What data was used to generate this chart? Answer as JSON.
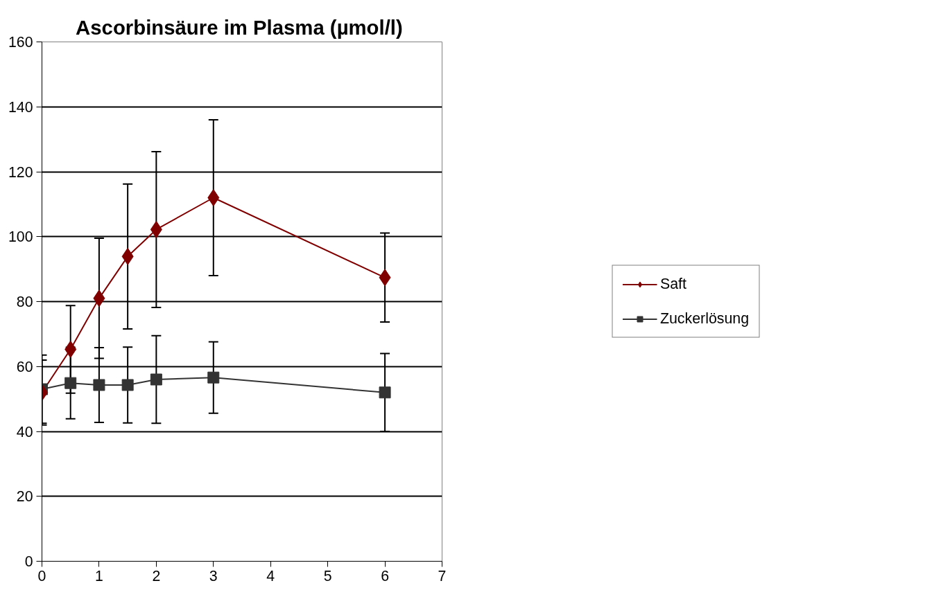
{
  "chart_data": {
    "type": "line",
    "title": "Ascorbinsäure  im Plasma (µmol/l)",
    "x": [
      0,
      0.5,
      1,
      1.5,
      2,
      3,
      6
    ],
    "series": [
      {
        "name": "Saft",
        "color": "#800000",
        "marker": "diamond",
        "values": [
          52,
          65.3,
          81,
          93.9,
          102.2,
          112,
          87.4
        ],
        "errors": [
          10,
          13.5,
          18.5,
          22.3,
          24,
          24,
          13.7
        ]
      },
      {
        "name": "Zuckerlösung",
        "color": "#333333",
        "marker": "square",
        "values": [
          53,
          54.9,
          54.3,
          54.3,
          56,
          56.6,
          52
        ],
        "errors": [
          10.5,
          11,
          11.5,
          11.7,
          13.5,
          11,
          12
        ]
      }
    ],
    "xlim": [
      0,
      7
    ],
    "xticks": [
      0,
      1,
      2,
      3,
      4,
      5,
      6,
      7
    ],
    "ylim": [
      0,
      160
    ],
    "yticks": [
      0,
      20,
      40,
      60,
      80,
      100,
      120,
      140,
      160
    ],
    "grid": "y",
    "legend": "right",
    "line_style": "solid"
  }
}
